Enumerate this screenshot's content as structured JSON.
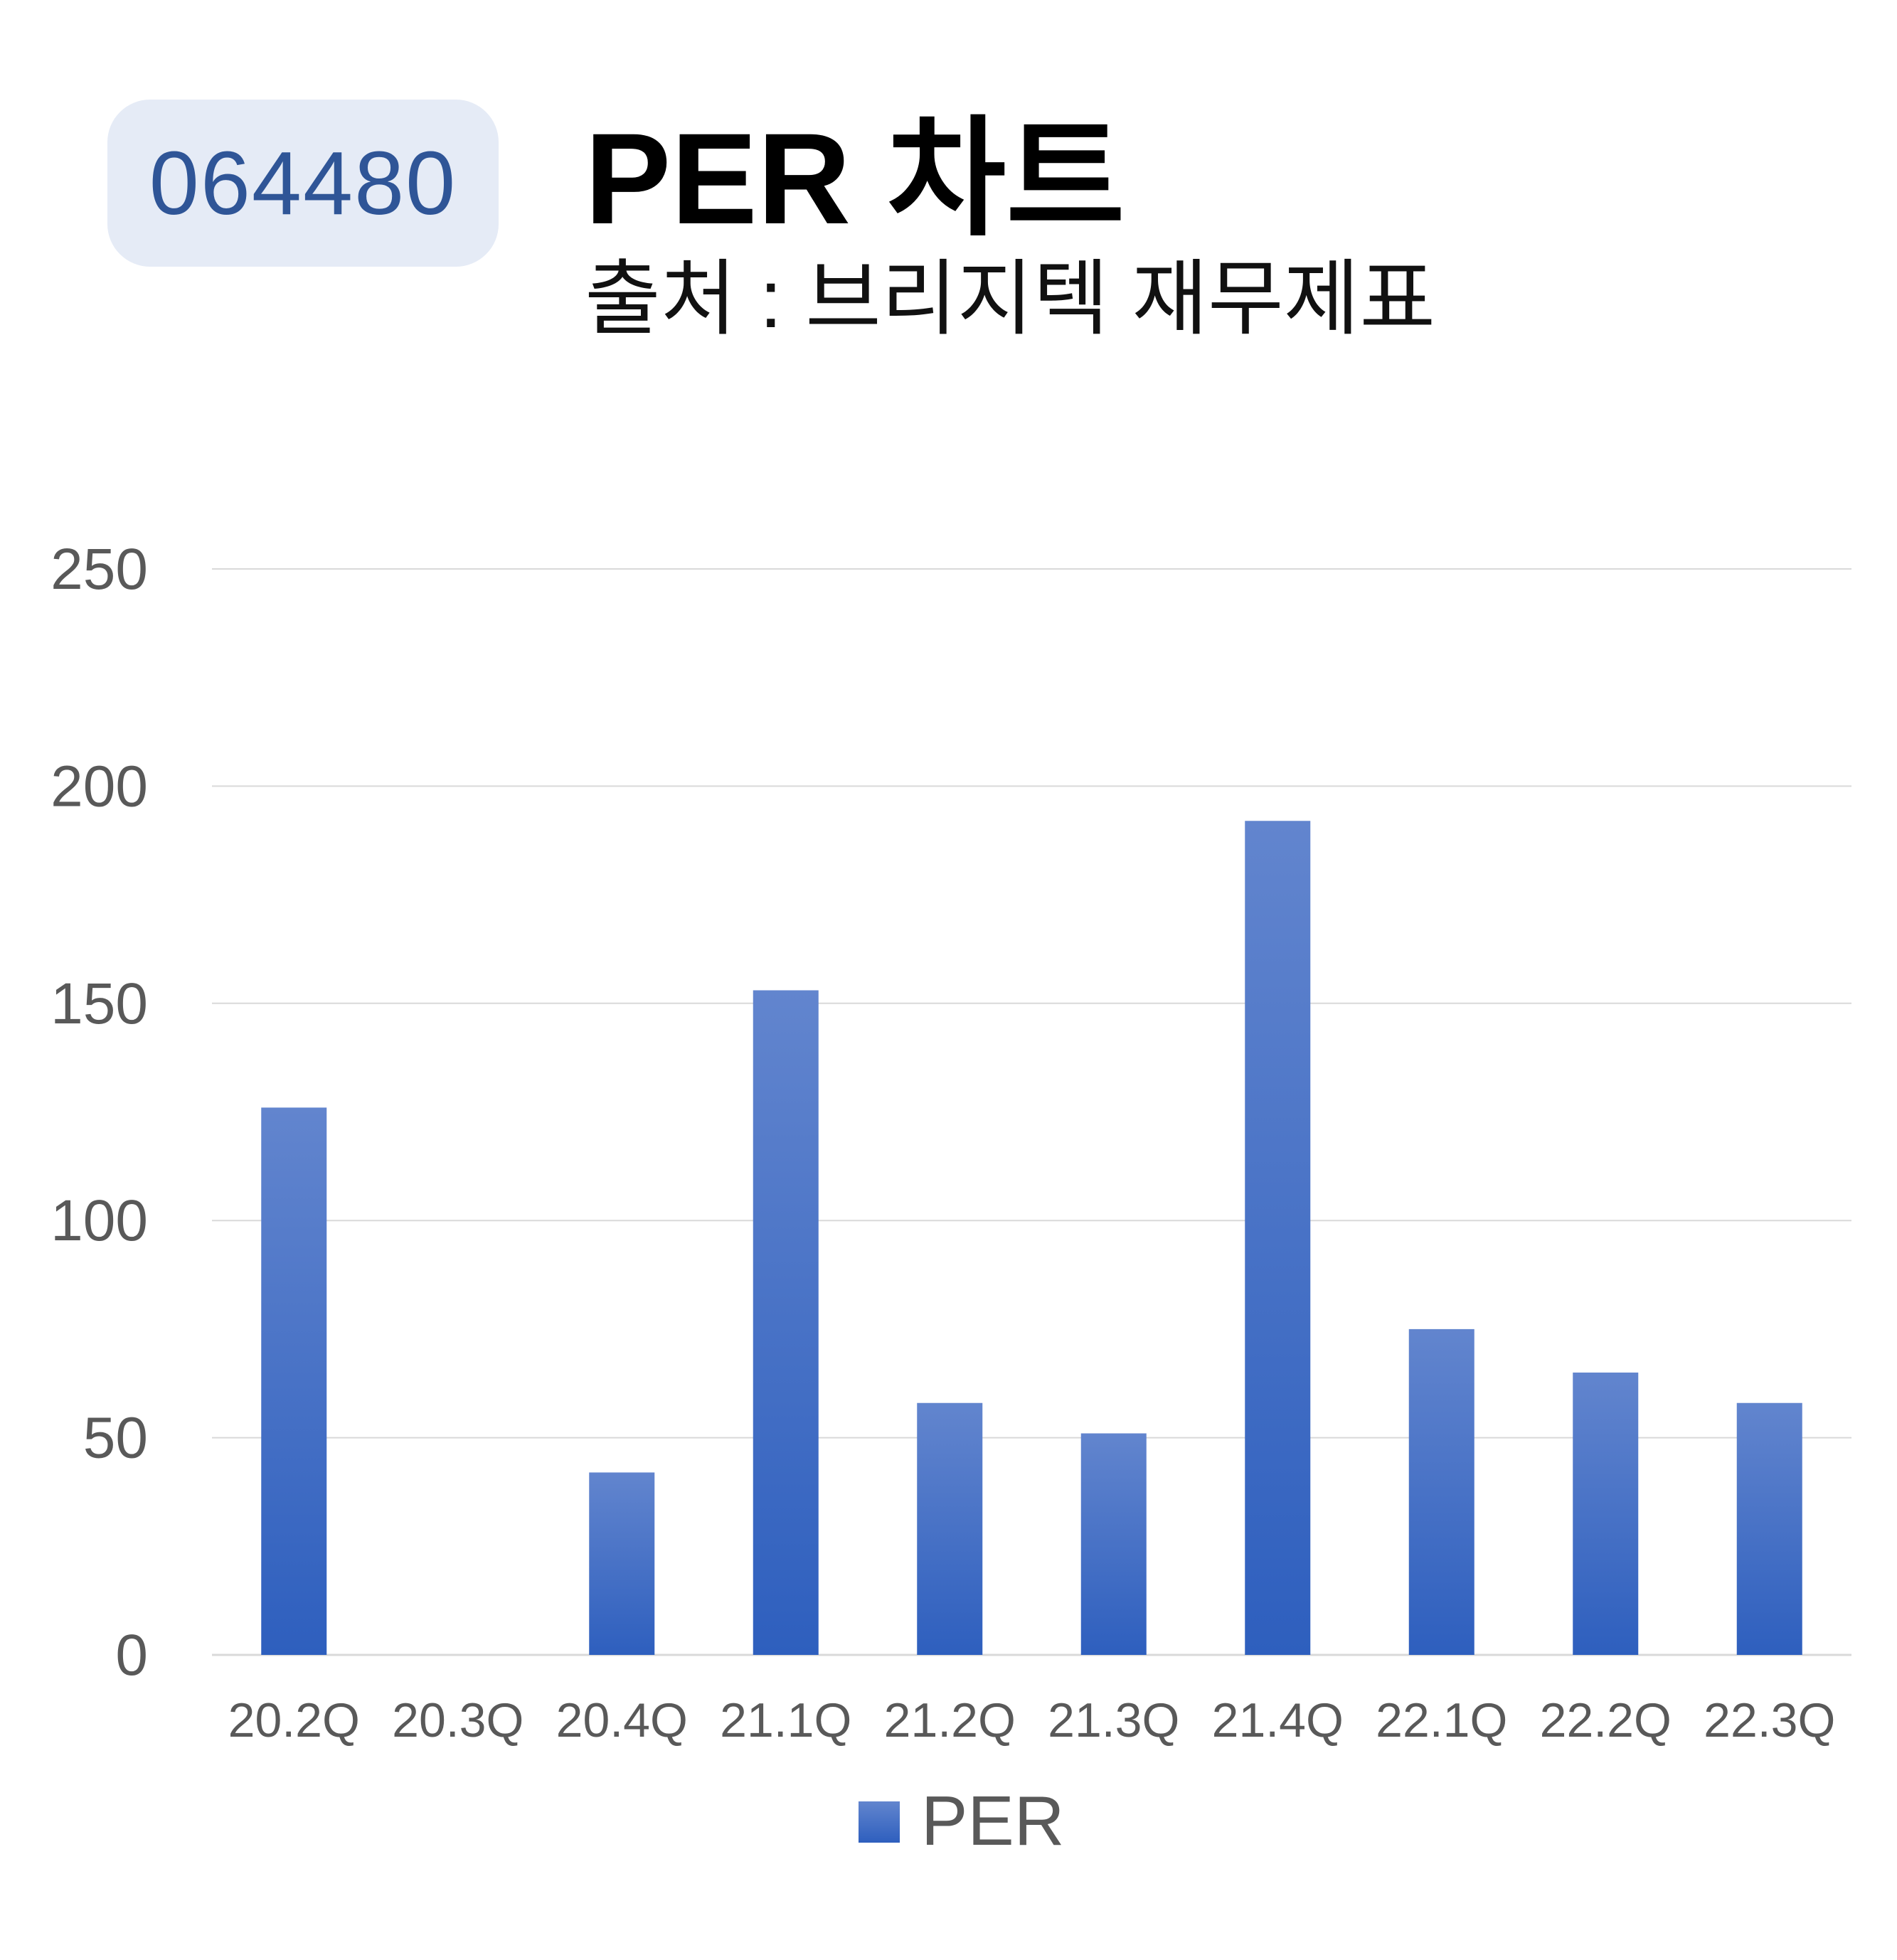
{
  "header": {
    "stock_code": "064480",
    "title": "PER 차트",
    "subtitle": "출처 : 브리지텍 재무제표"
  },
  "colors": {
    "bar_top": "#6285ce",
    "bar_bottom": "#2e5fbe",
    "badge_bg": "#e5ebf6",
    "badge_text": "#2f5597",
    "grid": "#d9d9d9",
    "tick_text": "#595959"
  },
  "chart_data": {
    "type": "bar",
    "title": "PER 차트",
    "subtitle": "출처 : 브리지텍 재무제표",
    "categories": [
      "20.2Q",
      "20.3Q",
      "20.4Q",
      "21.1Q",
      "21.2Q",
      "21.3Q",
      "21.4Q",
      "22.1Q",
      "22.2Q",
      "22.3Q"
    ],
    "series": [
      {
        "name": "PER",
        "values": [
          126,
          0,
          42,
          153,
          58,
          51,
          192,
          75,
          65,
          58
        ]
      }
    ],
    "yticks": [
      "0",
      "50",
      "100",
      "150",
      "200",
      "250"
    ],
    "ylim": [
      0,
      250
    ],
    "grid": true,
    "legend": "bottom-center",
    "xlabel": "",
    "ylabel": ""
  }
}
